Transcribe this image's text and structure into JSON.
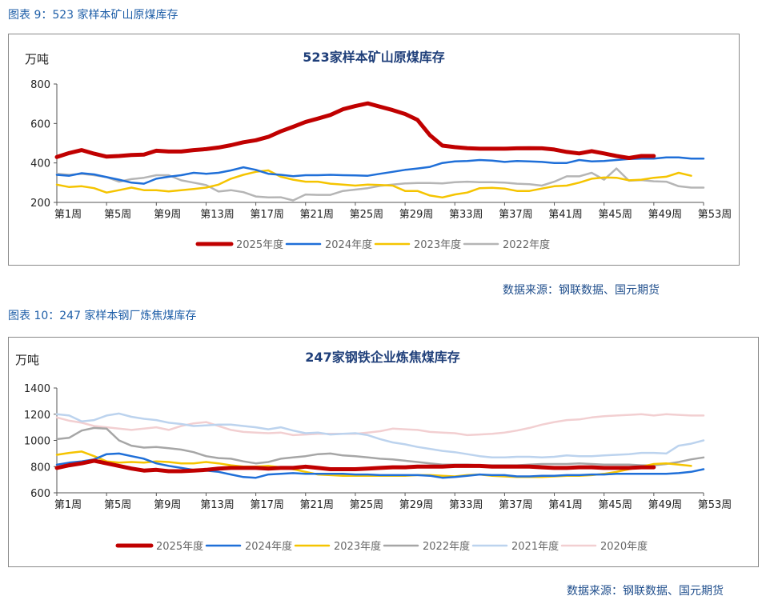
{
  "figure1": {
    "caption": "图表 9：523 家样本矿山原煤库存",
    "source": "数据来源：钢联数据、国元期货",
    "chart_data": {
      "type": "line",
      "title": "523家样本矿山原煤库存",
      "unit_label": "万吨",
      "ylim": [
        200,
        800
      ],
      "yticks": [
        200,
        400,
        600,
        800
      ],
      "x_tick_labels": [
        "第1周",
        "第5周",
        "第9周",
        "第13周",
        "第17周",
        "第21周",
        "第25周",
        "第29周",
        "第33周",
        "第37周",
        "第41周",
        "第45周",
        "第49周",
        "第53周"
      ],
      "x_tick_weeks": [
        1,
        5,
        9,
        13,
        17,
        21,
        25,
        29,
        33,
        37,
        41,
        45,
        49,
        53
      ],
      "grid": false,
      "legend_position": "bottom",
      "series": [
        {
          "name": "2025年度",
          "color": "#c00000",
          "width": 5,
          "values": [
            430,
            450,
            465,
            447,
            432,
            435,
            440,
            442,
            462,
            458,
            458,
            465,
            470,
            478,
            490,
            505,
            515,
            532,
            560,
            583,
            608,
            625,
            643,
            672,
            688,
            702,
            685,
            668,
            648,
            618,
            540,
            488,
            480,
            475,
            472,
            472,
            472,
            474,
            475,
            474,
            468,
            456,
            448,
            460,
            448,
            435,
            425,
            435,
            435
          ]
        },
        {
          "name": "2024年度",
          "color": "#1f6fd8",
          "width": 2.5,
          "values": [
            340,
            335,
            348,
            342,
            328,
            315,
            300,
            295,
            320,
            330,
            338,
            350,
            345,
            350,
            362,
            378,
            365,
            345,
            340,
            333,
            338,
            338,
            340,
            338,
            337,
            335,
            345,
            355,
            365,
            372,
            380,
            400,
            408,
            410,
            415,
            412,
            405,
            410,
            408,
            405,
            400,
            400,
            415,
            408,
            410,
            415,
            420,
            422,
            422,
            428,
            428,
            422,
            422
          ]
        },
        {
          "name": "2023年度",
          "color": "#f5c400",
          "width": 2.5,
          "values": [
            290,
            278,
            282,
            272,
            250,
            262,
            275,
            262,
            262,
            256,
            262,
            268,
            275,
            290,
            320,
            340,
            355,
            362,
            330,
            315,
            305,
            305,
            295,
            290,
            285,
            290,
            288,
            285,
            258,
            258,
            235,
            225,
            240,
            250,
            272,
            274,
            270,
            258,
            258,
            270,
            282,
            285,
            300,
            320,
            326,
            325,
            312,
            315,
            325,
            330,
            350,
            335
          ]
        },
        {
          "name": "2022年度",
          "color": "#b5b5b5",
          "width": 2.5,
          "values": [
            345,
            340,
            345,
            338,
            328,
            305,
            318,
            325,
            338,
            338,
            312,
            300,
            288,
            255,
            262,
            252,
            230,
            225,
            226,
            210,
            240,
            238,
            238,
            258,
            265,
            272,
            284,
            290,
            296,
            298,
            298,
            296,
            302,
            305,
            302,
            302,
            300,
            295,
            292,
            285,
            305,
            332,
            332,
            350,
            315,
            372,
            310,
            313,
            307,
            305,
            282,
            275,
            275
          ]
        }
      ]
    }
  },
  "figure2": {
    "caption": "图表 10：247 家样本钢厂炼焦煤库存",
    "source": "数据来源：钢联数据、国元期货",
    "chart_data": {
      "type": "line",
      "title": "247家钢铁企业炼焦煤库存",
      "unit_label": "万吨",
      "ylim": [
        600,
        1400
      ],
      "yticks": [
        600,
        800,
        1000,
        1200,
        1400
      ],
      "x_tick_labels": [
        "第1周",
        "第5周",
        "第9周",
        "第13周",
        "第17周",
        "第21周",
        "第25周",
        "第29周",
        "第33周",
        "第37周",
        "第41周",
        "第45周",
        "第49周",
        "第53周"
      ],
      "x_tick_weeks": [
        1,
        5,
        9,
        13,
        17,
        21,
        25,
        29,
        33,
        37,
        41,
        45,
        49,
        53
      ],
      "grid": false,
      "legend_position": "bottom",
      "series": [
        {
          "name": "2025年度",
          "color": "#c00000",
          "width": 5,
          "values": [
            790,
            810,
            825,
            845,
            825,
            805,
            785,
            770,
            775,
            765,
            765,
            770,
            775,
            785,
            790,
            790,
            790,
            785,
            790,
            790,
            800,
            790,
            780,
            780,
            780,
            785,
            790,
            795,
            795,
            800,
            800,
            800,
            805,
            805,
            805,
            800,
            800,
            800,
            800,
            795,
            790,
            790,
            795,
            795,
            790,
            790,
            790,
            795,
            795
          ]
        },
        {
          "name": "2024年度",
          "color": "#1f6fd8",
          "width": 2.5,
          "values": [
            815,
            830,
            840,
            855,
            895,
            900,
            880,
            860,
            825,
            805,
            790,
            775,
            770,
            760,
            740,
            720,
            715,
            740,
            745,
            750,
            745,
            745,
            745,
            745,
            740,
            740,
            735,
            735,
            735,
            735,
            730,
            715,
            720,
            730,
            740,
            735,
            735,
            725,
            725,
            730,
            730,
            735,
            735,
            740,
            740,
            745,
            745,
            745,
            745,
            745,
            750,
            760,
            780
          ]
        },
        {
          "name": "2023年度",
          "color": "#f5c400",
          "width": 2.5,
          "values": [
            890,
            905,
            915,
            880,
            840,
            830,
            835,
            830,
            840,
            835,
            825,
            825,
            835,
            825,
            810,
            800,
            800,
            805,
            795,
            780,
            760,
            740,
            735,
            730,
            730,
            730,
            730,
            730,
            730,
            735,
            735,
            730,
            725,
            735,
            740,
            730,
            725,
            720,
            720,
            720,
            725,
            730,
            730,
            735,
            745,
            760,
            780,
            800,
            820,
            825,
            815,
            805
          ]
        },
        {
          "name": "2022年度",
          "color": "#a6a6a6",
          "width": 2.5,
          "values": [
            1010,
            1020,
            1075,
            1095,
            1090,
            1000,
            960,
            945,
            950,
            940,
            930,
            910,
            880,
            865,
            860,
            840,
            825,
            835,
            860,
            870,
            880,
            895,
            900,
            885,
            880,
            870,
            860,
            855,
            845,
            835,
            825,
            815,
            815,
            815,
            810,
            810,
            810,
            810,
            815,
            820,
            820,
            820,
            825,
            820,
            815,
            815,
            815,
            810,
            810,
            820,
            835,
            855,
            870
          ]
        },
        {
          "name": "2021年度",
          "color": "#bcd3ee",
          "width": 2.5,
          "values": [
            1200,
            1190,
            1145,
            1155,
            1190,
            1205,
            1180,
            1165,
            1155,
            1135,
            1125,
            1110,
            1115,
            1120,
            1120,
            1110,
            1100,
            1085,
            1100,
            1075,
            1055,
            1060,
            1045,
            1050,
            1055,
            1040,
            1010,
            985,
            970,
            950,
            935,
            920,
            910,
            895,
            880,
            870,
            870,
            875,
            875,
            870,
            875,
            885,
            880,
            880,
            885,
            890,
            895,
            905,
            905,
            900,
            960,
            975,
            1000
          ]
        },
        {
          "name": "2020年度",
          "color": "#f2cfd1",
          "width": 2.5,
          "values": [
            1175,
            1150,
            1135,
            1110,
            1100,
            1090,
            1080,
            1090,
            1100,
            1080,
            1110,
            1130,
            1140,
            1110,
            1080,
            1065,
            1060,
            1055,
            1060,
            1040,
            1045,
            1050,
            1050,
            1050,
            1050,
            1060,
            1070,
            1090,
            1085,
            1080,
            1065,
            1060,
            1055,
            1040,
            1045,
            1050,
            1060,
            1075,
            1095,
            1120,
            1140,
            1155,
            1160,
            1175,
            1185,
            1190,
            1195,
            1200,
            1190,
            1200,
            1195,
            1190,
            1190
          ]
        }
      ]
    }
  }
}
